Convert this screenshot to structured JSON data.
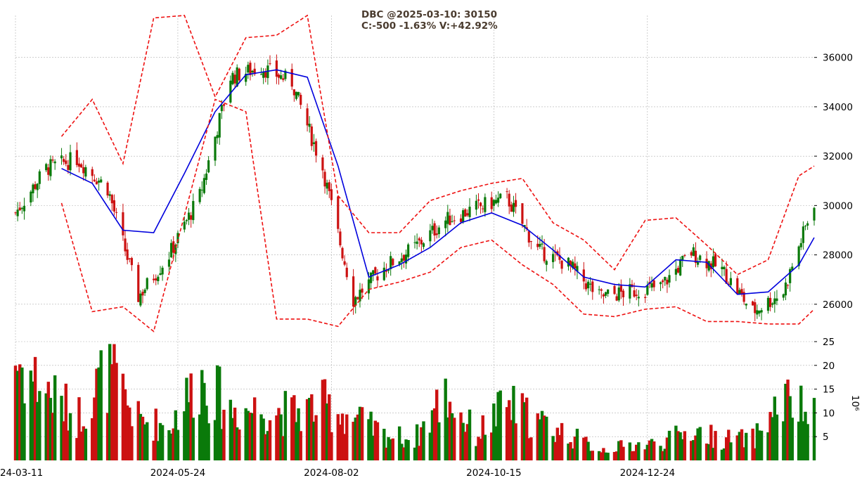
{
  "title": {
    "line1": "DBC @2025-03-10: 30150",
    "line2": "C:-500 -1.63% V:+42.92%"
  },
  "colors": {
    "up": "#0a7a0a",
    "down": "#cc1111",
    "ma": "#0000dd",
    "band": "#ee1111",
    "grid": "#b0b0b0"
  },
  "chart_data": [
    {
      "type": "candlestick",
      "panel": "price",
      "ylim": [
        24600,
        37700
      ],
      "y_ticks": [
        "36000",
        "34000",
        "32000",
        "30000",
        "28000",
        "26000"
      ],
      "x_ticks": [
        "2024-03-11",
        "2024-05-24",
        "2024-08-02",
        "2024-10-15",
        "2024-12-24"
      ],
      "x_range": [
        "2024-03-11",
        "2025-03-10"
      ],
      "series": [
        {
          "name": "",
          "kind": "close",
          "x": [
            "2024-03-11",
            "2024-03-25",
            "2024-04-08",
            "2024-04-22",
            "2024-05-06",
            "2024-05-20",
            "2024-06-03",
            "2024-06-17",
            "2024-07-01",
            "2024-07-15",
            "2024-07-29",
            "2024-08-12",
            "2024-08-26",
            "2024-09-09",
            "2024-09-23",
            "2024-10-07",
            "2024-10-21",
            "2024-11-04",
            "2024-11-18",
            "2024-12-02",
            "2024-12-16",
            "2024-12-30",
            "2025-01-13",
            "2025-01-27",
            "2025-02-10",
            "2025-02-24",
            "2025-03-10"
          ],
          "values": [
            29700,
            31500,
            31900,
            30700,
            26300,
            28000,
            30400,
            35200,
            35600,
            35000,
            31500,
            26200,
            27500,
            28300,
            29400,
            29900,
            30300,
            28200,
            27600,
            26300,
            26500,
            26700,
            28100,
            27400,
            25700,
            26500,
            30150
          ]
        },
        {
          "name": "",
          "kind": "ma",
          "x": [
            "2024-04-01",
            "2024-04-15",
            "2024-04-29",
            "2024-05-13",
            "2024-05-27",
            "2024-06-10",
            "2024-06-24",
            "2024-07-08",
            "2024-07-22",
            "2024-08-05",
            "2024-08-19",
            "2024-09-02",
            "2024-09-16",
            "2024-09-30",
            "2024-10-14",
            "2024-10-28",
            "2024-11-11",
            "2024-11-25",
            "2024-12-09",
            "2024-12-23",
            "2025-01-06",
            "2025-01-20",
            "2025-02-03",
            "2025-02-17",
            "2025-03-03",
            "2025-03-10"
          ],
          "values": [
            31500,
            30900,
            29000,
            28900,
            31300,
            33800,
            35300,
            35500,
            35200,
            31600,
            27100,
            27600,
            28300,
            29300,
            29700,
            29200,
            28200,
            27100,
            26800,
            26700,
            27800,
            27700,
            26400,
            26500,
            27600,
            28700
          ]
        },
        {
          "name": "",
          "kind": "upper_band",
          "x": [
            "2024-04-01",
            "2024-04-15",
            "2024-04-29",
            "2024-05-13",
            "2024-05-27",
            "2024-06-10",
            "2024-06-24",
            "2024-07-08",
            "2024-07-22",
            "2024-08-05",
            "2024-08-19",
            "2024-09-02",
            "2024-09-16",
            "2024-09-30",
            "2024-10-14",
            "2024-10-28",
            "2024-11-11",
            "2024-11-25",
            "2024-12-09",
            "2024-12-23",
            "2025-01-06",
            "2025-01-20",
            "2025-02-03",
            "2025-02-17",
            "2025-03-03",
            "2025-03-10"
          ],
          "values": [
            32800,
            34300,
            31700,
            37600,
            37700,
            34400,
            36800,
            36900,
            37700,
            30400,
            28900,
            28900,
            30200,
            30600,
            30900,
            31100,
            29300,
            28600,
            27400,
            29400,
            29500,
            28400,
            27200,
            27800,
            31200,
            31600
          ]
        },
        {
          "name": "",
          "kind": "lower_band",
          "x": [
            "2024-04-01",
            "2024-04-15",
            "2024-04-29",
            "2024-05-13",
            "2024-05-27",
            "2024-06-10",
            "2024-06-24",
            "2024-07-08",
            "2024-07-22",
            "2024-08-05",
            "2024-08-19",
            "2024-09-02",
            "2024-09-16",
            "2024-09-30",
            "2024-10-14",
            "2024-10-28",
            "2024-11-11",
            "2024-11-25",
            "2024-12-09",
            "2024-12-23",
            "2025-01-06",
            "2025-01-20",
            "2025-02-03",
            "2025-02-17",
            "2025-03-03",
            "2025-03-10"
          ],
          "values": [
            30100,
            25700,
            25900,
            24900,
            29600,
            34300,
            33800,
            25400,
            25400,
            25100,
            26600,
            26900,
            27300,
            28300,
            28600,
            27600,
            26800,
            25600,
            25500,
            25800,
            25900,
            25300,
            25300,
            25200,
            25200,
            25800
          ]
        }
      ]
    },
    {
      "type": "bar",
      "panel": "volume",
      "ylabel": "10⁶",
      "ylim": [
        0,
        25
      ],
      "y_ticks": [
        "25",
        "20",
        "15",
        "10",
        "5"
      ],
      "x": [
        "2024-03-11",
        "2024-03-25",
        "2024-04-08",
        "2024-04-22",
        "2024-05-06",
        "2024-05-20",
        "2024-06-03",
        "2024-06-17",
        "2024-07-01",
        "2024-07-15",
        "2024-07-29",
        "2024-08-12",
        "2024-08-26",
        "2024-09-09",
        "2024-09-23",
        "2024-10-07",
        "2024-10-21",
        "2024-11-04",
        "2024-11-18",
        "2024-12-02",
        "2024-12-16",
        "2024-12-30",
        "2025-01-13",
        "2025-01-27",
        "2025-02-10",
        "2025-02-24",
        "2025-03-10"
      ],
      "values": [
        23.5,
        16.5,
        10,
        21,
        9.5,
        8,
        19.5,
        12,
        12,
        11,
        13,
        10,
        6,
        5,
        15.5,
        6,
        13,
        9,
        6,
        2.5,
        3.5,
        4,
        7,
        5,
        5,
        14,
        10
      ]
    }
  ]
}
